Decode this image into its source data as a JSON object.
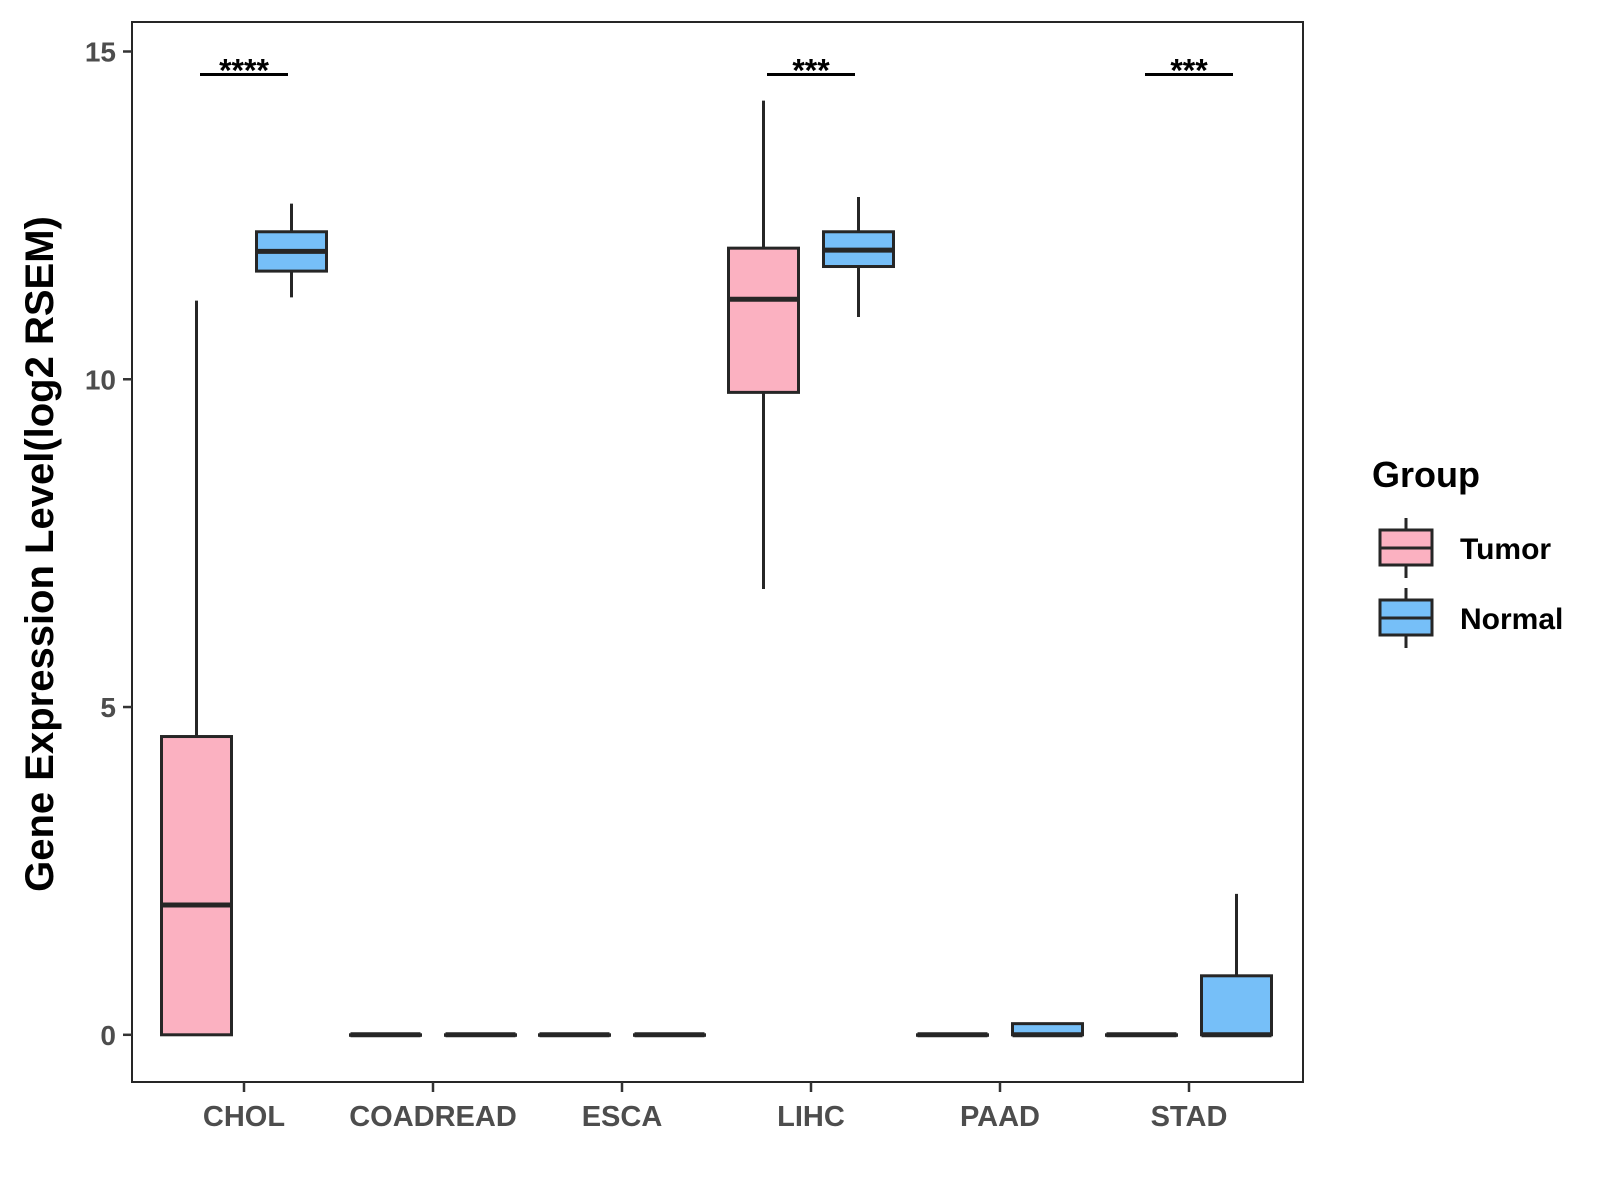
{
  "chart_data": {
    "type": "boxplot",
    "ylabel": "Gene Expression Level(log2 RSEM)",
    "xlabel": "",
    "ylim": [
      -0.72,
      15.45
    ],
    "yticks": [
      0,
      5,
      10,
      15
    ],
    "categories": [
      "CHOL",
      "COADREAD",
      "ESCA",
      "LIHC",
      "PAAD",
      "STAD"
    ],
    "legend": {
      "title": "Group",
      "position": "right",
      "entries": [
        "Tumor",
        "Normal"
      ]
    },
    "colors": {
      "Tumor": "#fbb1c1",
      "Normal": "#76bff8",
      "outline": "#262626"
    },
    "series": [
      {
        "name": "Tumor",
        "boxes": [
          {
            "category": "CHOL",
            "min": 0,
            "q1": 0,
            "median": 1.98,
            "q3": 4.55,
            "max": 11.2
          },
          {
            "category": "COADREAD",
            "min": 0,
            "q1": 0,
            "median": 0,
            "q3": 0,
            "max": 0
          },
          {
            "category": "ESCA",
            "min": 0,
            "q1": 0,
            "median": 0,
            "q3": 0,
            "max": 0
          },
          {
            "category": "LIHC",
            "min": 6.8,
            "q1": 9.8,
            "median": 11.22,
            "q3": 12.0,
            "max": 14.25
          },
          {
            "category": "PAAD",
            "min": 0,
            "q1": 0,
            "median": 0,
            "q3": 0,
            "max": 0
          },
          {
            "category": "STAD",
            "min": 0,
            "q1": 0,
            "median": 0,
            "q3": 0,
            "max": 0
          }
        ]
      },
      {
        "name": "Normal",
        "boxes": [
          {
            "category": "CHOL",
            "min": 11.25,
            "q1": 11.65,
            "median": 11.95,
            "q3": 12.25,
            "max": 12.68
          },
          {
            "category": "COADREAD",
            "min": 0,
            "q1": 0,
            "median": 0,
            "q3": 0,
            "max": 0
          },
          {
            "category": "ESCA",
            "min": 0,
            "q1": 0,
            "median": 0,
            "q3": 0,
            "max": 0
          },
          {
            "category": "LIHC",
            "min": 10.95,
            "q1": 11.72,
            "median": 11.97,
            "q3": 12.25,
            "max": 12.78
          },
          {
            "category": "PAAD",
            "min": 0,
            "q1": 0,
            "median": 0,
            "q3": 0.17,
            "max": 0.17
          },
          {
            "category": "STAD",
            "min": 0,
            "q1": 0,
            "median": 0,
            "q3": 0.9,
            "max": 2.15
          }
        ]
      }
    ],
    "significance": [
      {
        "category": "CHOL",
        "label": "****",
        "y": 14.65
      },
      {
        "category": "LIHC",
        "label": "***",
        "y": 14.65
      },
      {
        "category": "STAD",
        "label": "***",
        "y": 14.65
      }
    ]
  }
}
